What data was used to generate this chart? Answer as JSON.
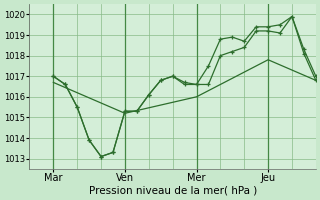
{
  "xlabel": "Pression niveau de la mer( hPa )",
  "background_color": "#c8e8cc",
  "plot_bg_color": "#d4eed8",
  "grid_color": "#88bb88",
  "line_color": "#2d6e2d",
  "vline_color": "#448844",
  "ylim": [
    1012.5,
    1020.5
  ],
  "yticks": [
    1013,
    1014,
    1015,
    1016,
    1017,
    1018,
    1019,
    1020
  ],
  "xtick_labels": [
    "Mar",
    "Ven",
    "Mer",
    "Jeu"
  ],
  "xtick_positions": [
    8,
    32,
    56,
    80
  ],
  "xlim": [
    0,
    96
  ],
  "vlines": [
    8,
    32,
    56,
    80
  ],
  "line1_x": [
    8,
    12,
    16,
    20,
    24,
    28,
    32,
    36,
    40,
    44,
    48,
    52,
    56,
    60,
    64,
    68,
    72,
    76,
    80,
    84,
    88,
    92,
    96
  ],
  "line1_y": [
    1017.0,
    1016.6,
    1015.5,
    1013.9,
    1013.1,
    1013.3,
    1015.3,
    1015.3,
    1016.1,
    1016.8,
    1017.0,
    1016.7,
    1016.6,
    1017.5,
    1018.8,
    1018.9,
    1018.7,
    1019.4,
    1019.4,
    1019.5,
    1019.9,
    1018.3,
    1017.0
  ],
  "line2_x": [
    8,
    12,
    16,
    20,
    24,
    28,
    32,
    36,
    40,
    44,
    48,
    52,
    56,
    60,
    64,
    68,
    72,
    76,
    80,
    84,
    88,
    92,
    96
  ],
  "line2_y": [
    1017.0,
    1016.6,
    1015.5,
    1013.9,
    1013.1,
    1013.3,
    1015.3,
    1015.3,
    1016.1,
    1016.8,
    1017.0,
    1016.6,
    1016.6,
    1016.6,
    1018.0,
    1018.2,
    1018.4,
    1019.2,
    1019.2,
    1019.1,
    1019.9,
    1018.1,
    1016.8
  ],
  "line3_x": [
    8,
    32,
    56,
    80,
    96
  ],
  "line3_y": [
    1016.7,
    1015.2,
    1016.0,
    1017.8,
    1016.8
  ]
}
